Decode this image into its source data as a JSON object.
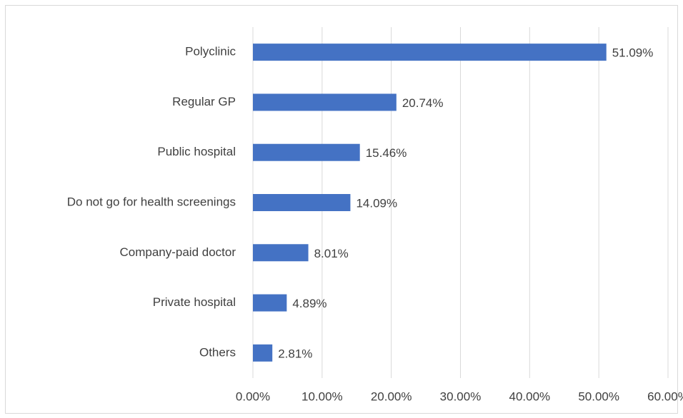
{
  "chart_data": {
    "type": "hbar",
    "categories": [
      "Polyclinic",
      "Regular GP",
      "Public hospital",
      "Do not go for health screenings",
      "Company-paid doctor",
      "Private hospital",
      "Others"
    ],
    "values": [
      51.09,
      20.74,
      15.46,
      14.09,
      8.01,
      4.89,
      2.81
    ],
    "value_labels": [
      "51.09%",
      "20.74%",
      "15.46%",
      "14.09%",
      "8.01%",
      "4.89%",
      "2.81%"
    ],
    "color": "#4472c4",
    "xlim": [
      0,
      60
    ],
    "xticks": [
      {
        "value": 0,
        "label": "0.00%"
      },
      {
        "value": 10,
        "label": "10.00%"
      },
      {
        "value": 20,
        "label": "20.00%"
      },
      {
        "value": 30,
        "label": "30.00%"
      },
      {
        "value": 40,
        "label": "40.00%"
      },
      {
        "value": 50,
        "label": "50.00%"
      },
      {
        "value": 60,
        "label": "60.00%"
      }
    ],
    "grid": true
  }
}
